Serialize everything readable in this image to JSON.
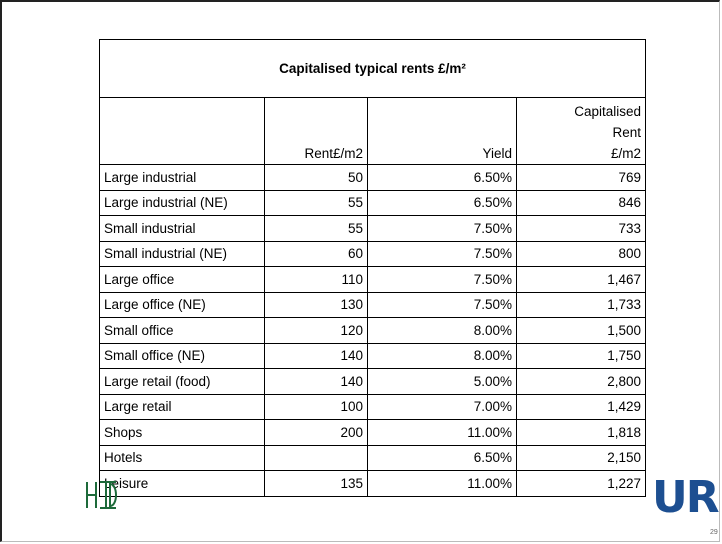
{
  "table": {
    "title": "Capitalised typical rents £/m²",
    "header": [
      null,
      "Rent£/m2",
      "Yield",
      [
        "Capitalised",
        "Rent",
        "£/m2"
      ]
    ],
    "rows": [
      [
        "Large industrial",
        "50",
        "6.50%",
        "769"
      ],
      [
        "Large industrial (NE)",
        "55",
        "6.50%",
        "846"
      ],
      [
        "Small industrial",
        "55",
        "7.50%",
        "733"
      ],
      [
        "Small industrial (NE)",
        "60",
        "7.50%",
        "800"
      ],
      [
        "Large office",
        "110",
        "7.50%",
        "1,467"
      ],
      [
        "Large office (NE)",
        "130",
        "7.50%",
        "1,733"
      ],
      [
        "Small office",
        "120",
        "8.00%",
        "1,500"
      ],
      [
        "Small office (NE)",
        "140",
        "8.00%",
        "1,750"
      ],
      [
        "Large retail (food)",
        "140",
        "5.00%",
        "2,800"
      ],
      [
        "Large retail",
        "100",
        "7.00%",
        "1,429"
      ],
      [
        "Shops",
        "200",
        "11.00%",
        "1,818"
      ],
      [
        "Hotels",
        null,
        "6.50%",
        "2,150"
      ],
      [
        "Leisure",
        "135",
        "11.00%",
        "1,227"
      ]
    ]
  },
  "footer": {
    "logo": "URS",
    "page": "29"
  }
}
